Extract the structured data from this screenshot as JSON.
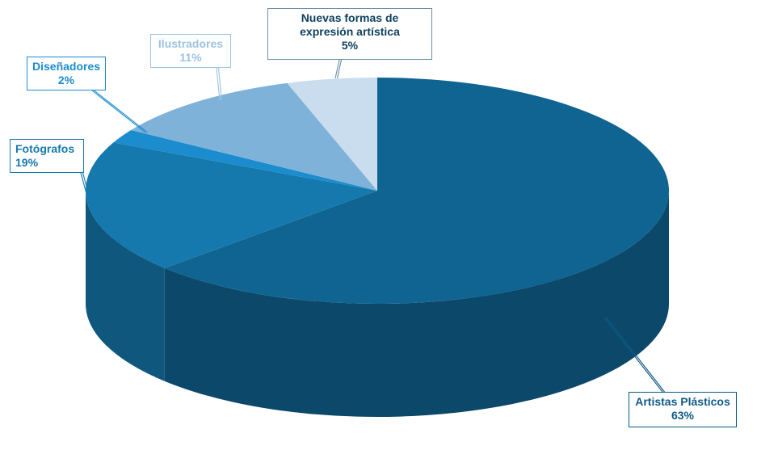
{
  "chart_data": {
    "type": "pie",
    "style": "3d",
    "title": "",
    "start_angle_deg": 90,
    "direction": "clockwise",
    "slices": [
      {
        "label": "Artistas Plásticos",
        "value": 63,
        "value_label": "63%",
        "color": "#0f6492",
        "label_color": "#0f5a86"
      },
      {
        "label": "Fotógrafos",
        "value": 19,
        "value_label": "19%",
        "color": "#1579ad",
        "label_color": "#1579ad"
      },
      {
        "label": "Diseñadores",
        "value": 2,
        "value_label": "2%",
        "color": "#1b8ccd",
        "label_color": "#1b8ccd"
      },
      {
        "label": "Ilustradores",
        "value": 11,
        "value_label": "11%",
        "color": "#7fb2d9",
        "label_color": "#9cc3e3"
      },
      {
        "label": "Nuevas formas de expresión artística",
        "value": 5,
        "value_label": "5%",
        "color": "#c9ddee",
        "label_color": "#0d3f5e"
      }
    ]
  }
}
